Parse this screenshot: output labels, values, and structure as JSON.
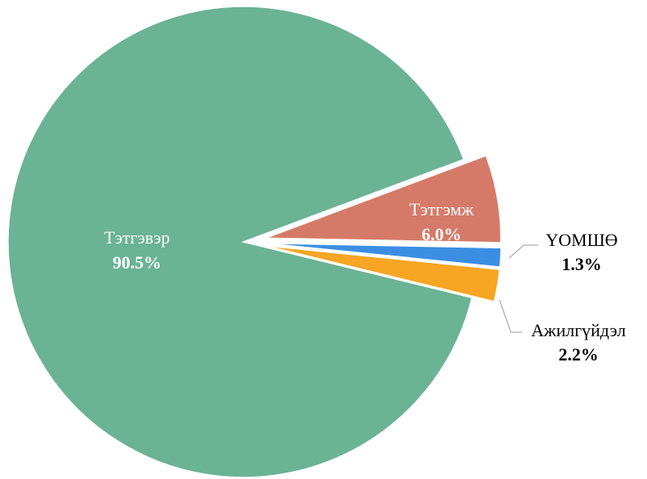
{
  "chart_data": {
    "type": "pie",
    "categories": [
      "Тэтгэвэр",
      "Тэтгэмж",
      "ҮОМШӨ",
      "Ажилгүйдэл"
    ],
    "values": [
      90.5,
      6.0,
      1.3,
      2.2
    ],
    "value_labels": [
      "90.5%",
      "6.0%",
      "1.3%",
      "2.2%"
    ],
    "colors": [
      "#6ab395",
      "#d57a68",
      "#3b8ee3",
      "#f6a623"
    ]
  }
}
